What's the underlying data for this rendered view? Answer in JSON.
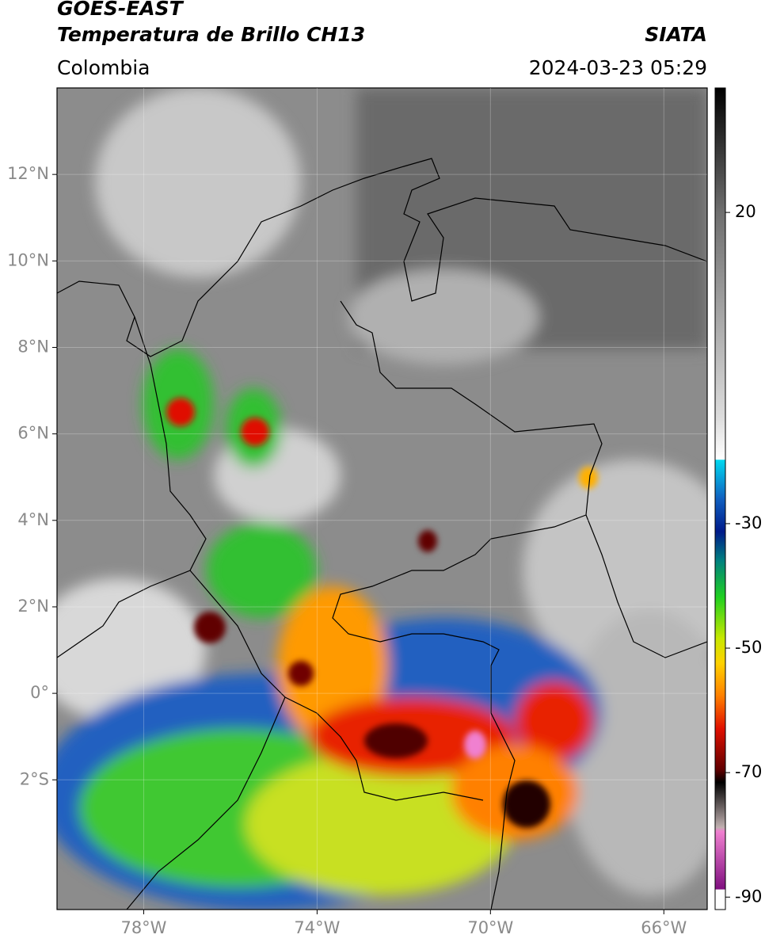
{
  "map": {
    "satellite": "GOES-EAST",
    "title": "Temperatura de Brillo CH13",
    "source": "SIATA",
    "region": "Colombia",
    "timestamp": "2024-03-23 05:29",
    "lonlim": [
      -80,
      -65
    ],
    "latlim": [
      -5,
      14
    ],
    "lon_ticks": [
      {
        "value": -78,
        "label": "78°W"
      },
      {
        "value": -74,
        "label": "74°W"
      },
      {
        "value": -70,
        "label": "70°W"
      },
      {
        "value": -66,
        "label": "66°W"
      }
    ],
    "lat_ticks": [
      {
        "value": 12,
        "label": "12°N"
      },
      {
        "value": 10,
        "label": "10°N"
      },
      {
        "value": 8,
        "label": "8°N"
      },
      {
        "value": 6,
        "label": "6°N"
      },
      {
        "value": 4,
        "label": "4°N"
      },
      {
        "value": 2,
        "label": "2°N"
      },
      {
        "value": 0,
        "label": "0°"
      },
      {
        "value": -2,
        "label": "2°S"
      }
    ],
    "grid": true,
    "colorbar": {
      "lim": [
        -92,
        40
      ],
      "ticks": [
        20,
        -30,
        -50,
        -70,
        -90
      ]
    }
  }
}
